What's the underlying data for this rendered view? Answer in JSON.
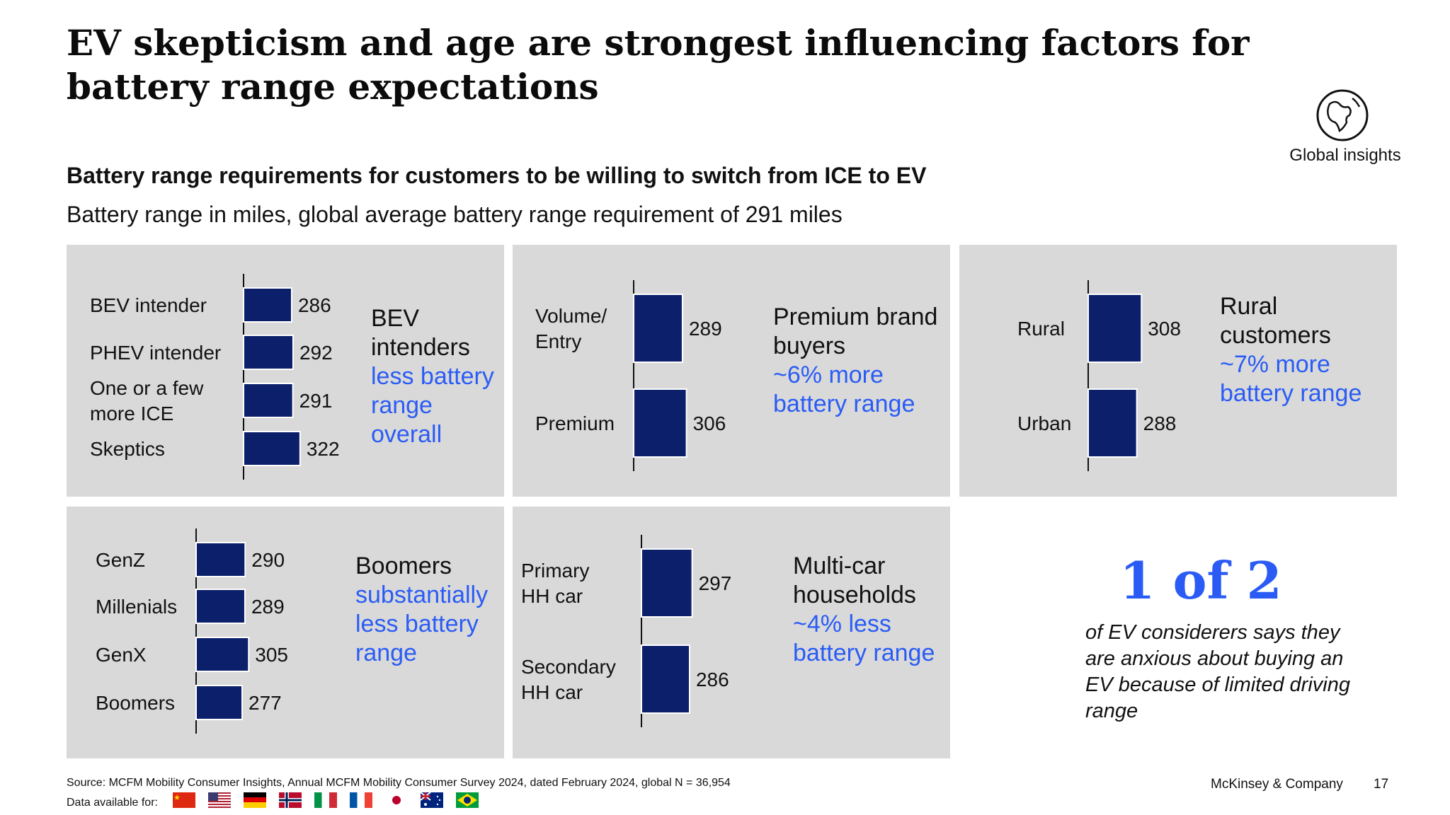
{
  "title": "EV skepticism and age are strongest influencing factors for battery range expectations",
  "badge": {
    "icon": "globe-icon",
    "label": "Global insights"
  },
  "subtitle": "Battery range requirements for customers to be willing to switch from ICE to EV",
  "subsubtitle": "Battery range in miles, global average battery range requirement of 291 miles",
  "colors": {
    "bar": "#0b1f6b",
    "accent": "#2a5cf5",
    "panel": "#d9d9d9"
  },
  "chart_data": [
    {
      "type": "bar",
      "orientation": "horizontal",
      "categories": [
        "BEV intender",
        "PHEV intender",
        "One or a few more ICE",
        "Skeptics"
      ],
      "values": [
        286,
        292,
        291,
        322
      ],
      "unit": "miles"
    },
    {
      "type": "bar",
      "orientation": "horizontal",
      "categories": [
        "Volume/ Entry",
        "Premium"
      ],
      "values": [
        289,
        306
      ],
      "unit": "miles"
    },
    {
      "type": "bar",
      "orientation": "horizontal",
      "categories": [
        "Rural",
        "Urban"
      ],
      "values": [
        308,
        288
      ],
      "unit": "miles"
    },
    {
      "type": "bar",
      "orientation": "horizontal",
      "categories": [
        "GenZ",
        "Millenials",
        "GenX",
        "Boomers"
      ],
      "values": [
        290,
        289,
        305,
        277
      ],
      "unit": "miles"
    },
    {
      "type": "bar",
      "orientation": "horizontal",
      "categories": [
        "Primary HH car",
        "Secondary HH car"
      ],
      "values": [
        297,
        286
      ],
      "unit": "miles"
    }
  ],
  "annotations": [
    {
      "head": "BEV intenders",
      "body": "less battery range overall"
    },
    {
      "head": "Premium brand buyers",
      "body": "~6% more battery range"
    },
    {
      "head": "Rural customers",
      "body": "~7% more battery range"
    },
    {
      "head": "Boomers",
      "body": "substantially less battery range"
    },
    {
      "head": "Multi-car households",
      "body": "~4% less battery range"
    }
  ],
  "stat": {
    "value": "1 of 2",
    "text": "of EV considerers says they are anxious about buying an EV because of limited driving range"
  },
  "footer": {
    "source": "Source: MCFM Mobility Consumer Insights, Annual MCFM Mobility Consumer Survey 2024, dated February 2024, global N = 36,954",
    "data_available": "Data available for:",
    "flags": [
      "china-flag-icon",
      "usa-flag-icon",
      "germany-flag-icon",
      "norway-flag-icon",
      "italy-flag-icon",
      "france-flag-icon",
      "japan-flag-icon",
      "australia-flag-icon",
      "brazil-flag-icon"
    ],
    "brand": "McKinsey & Company",
    "page": "17"
  }
}
